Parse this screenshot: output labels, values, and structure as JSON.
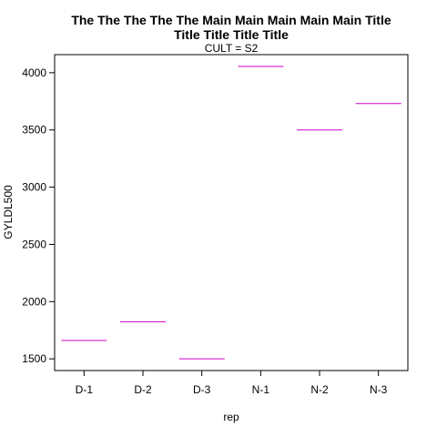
{
  "chart_data": {
    "type": "scatter",
    "title_lines": [
      "The The The The The Main Main Main Main Main Title",
      "Title Title Title Title"
    ],
    "subtitle": "CULT = S2",
    "xlabel": "rep",
    "ylabel": "GYLDL500",
    "categories": [
      "D-1",
      "D-2",
      "D-3",
      "N-1",
      "N-2",
      "N-3"
    ],
    "values": [
      1660,
      1825,
      1500,
      4055,
      3500,
      3730
    ],
    "yticks": [
      1500,
      2000,
      2500,
      3000,
      3500,
      4000
    ],
    "ylim": [
      1398,
      4158
    ],
    "series_color": "#cc00cc",
    "grid": false,
    "legend": "none"
  }
}
